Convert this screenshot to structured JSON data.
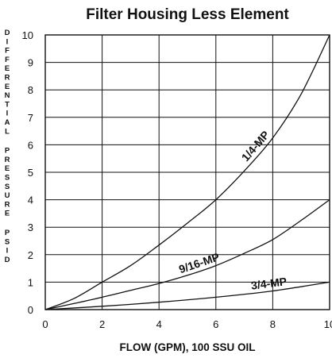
{
  "chart_data": {
    "type": "line",
    "title": "Filter Housing Less Element",
    "xlabel": "FLOW (GPM), 100 SSU OIL",
    "ylabel": "DIFFERENTIAL PRESSURE PSID",
    "xlim": [
      0,
      10
    ],
    "ylim": [
      0,
      10
    ],
    "x_ticks": [
      "0",
      "2",
      "4",
      "6",
      "8",
      "10"
    ],
    "y_ticks": [
      "0",
      "1",
      "2",
      "3",
      "4",
      "5",
      "6",
      "7",
      "8",
      "9",
      "10"
    ],
    "grid": true,
    "series": [
      {
        "name": "1/4-MP",
        "x": [
          0,
          1,
          2,
          3,
          4,
          5,
          6,
          7,
          8,
          9,
          10
        ],
        "y": [
          0,
          0.4,
          1.0,
          1.6,
          2.35,
          3.15,
          4.0,
          5.05,
          6.25,
          7.85,
          10.0
        ]
      },
      {
        "name": "9/16-MP",
        "x": [
          0,
          1,
          2,
          3,
          4,
          5,
          6,
          7,
          8,
          9,
          10
        ],
        "y": [
          0,
          0.22,
          0.45,
          0.7,
          0.95,
          1.25,
          1.6,
          2.05,
          2.55,
          3.25,
          4.0
        ]
      },
      {
        "name": "3/4-MP",
        "x": [
          0,
          2,
          4,
          6,
          8,
          10
        ],
        "y": [
          0,
          0.12,
          0.27,
          0.45,
          0.68,
          1.0
        ]
      }
    ]
  }
}
